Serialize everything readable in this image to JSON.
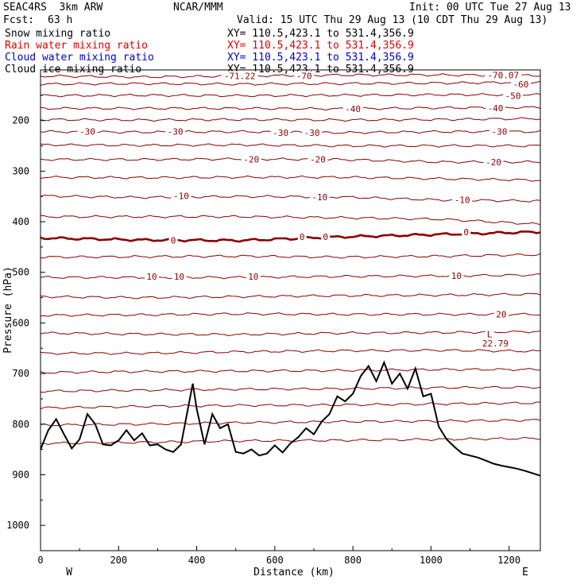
{
  "header": {
    "model": "SEAC4RS  3km ARW",
    "org": "NCAR/MMM",
    "init": "Init: 00 UTC Tue 27 Aug 13",
    "fcst_label": "Fcst:",
    "fcst_value": "63 h",
    "valid": "Valid: 15 UTC Thu 29 Aug 13 (10 CDT Thu 29 Aug 13)"
  },
  "fields": [
    {
      "name": "Snow mixing ratio",
      "xy": "XY= 110.5,423.1 to 531.4,356.9",
      "color": "#000000"
    },
    {
      "name": "Rain water mixing ratio",
      "xy": "XY= 110.5,423.1 to 531.4,356.9",
      "color": "#e00000"
    },
    {
      "name": "Cloud water mixing ratio",
      "xy": "XY= 110.5,423.1 to 531.4,356.9",
      "color": "#0000c8"
    },
    {
      "name": "Cloud ice mixing ratio",
      "xy": "XY= 110.5,423.1 to 531.4,356.9",
      "color": "#000000"
    }
  ],
  "colors": {
    "contour": "#8b0000",
    "terrain": "#000000",
    "frame": "#000000"
  },
  "chart_data": {
    "type": "line",
    "xlabel": "Distance (km)",
    "ylabel": "Pressure (hPa)",
    "xlim": [
      0,
      1280
    ],
    "ylim": [
      1050,
      100
    ],
    "x_ticks": [
      0,
      200,
      400,
      600,
      800,
      1000,
      1200
    ],
    "y_ticks": [
      200,
      300,
      400,
      500,
      600,
      700,
      800,
      900,
      1000
    ],
    "left_end": "W",
    "right_end": "E",
    "temperature_contours": [
      {
        "level": -70,
        "pressure": [
          112,
          114,
          112,
          110,
          110,
          111
        ]
      },
      {
        "level": -60,
        "pressure": [
          128,
          127,
          128,
          127,
          126,
          124
        ]
      },
      {
        "level": -50,
        "pressure": [
          151,
          150,
          151,
          150,
          149,
          149
        ]
      },
      {
        "level": -40,
        "pressure": [
          176,
          176,
          176,
          177,
          175,
          174
        ]
      },
      {
        "level": -35,
        "pressure": [
          198,
          199,
          198,
          199,
          198,
          196
        ]
      },
      {
        "level": -30,
        "pressure": [
          222,
          223,
          222,
          224,
          222,
          222
        ]
      },
      {
        "level": -25,
        "pressure": [
          248,
          249,
          248,
          250,
          250,
          250
        ]
      },
      {
        "level": -20,
        "pressure": [
          277,
          277,
          276,
          277,
          282,
          282
        ]
      },
      {
        "level": -15,
        "pressure": [
          312,
          313,
          312,
          312,
          315,
          318
        ]
      },
      {
        "level": -10,
        "pressure": [
          349,
          352,
          350,
          351,
          357,
          359
        ]
      },
      {
        "level": -5,
        "pressure": [
          390,
          390,
          390,
          392,
          395,
          405
        ]
      },
      {
        "level": 0,
        "pressure": [
          432,
          436,
          437,
          430,
          425,
          420
        ]
      },
      {
        "level": 5,
        "pressure": [
          470,
          469,
          468,
          470,
          468,
          465
        ]
      },
      {
        "level": 10,
        "pressure": [
          510,
          510,
          510,
          508,
          507,
          505
        ]
      },
      {
        "level": 15,
        "pressure": [
          548,
          550,
          548,
          546,
          545,
          543
        ]
      },
      {
        "level": 20,
        "pressure": [
          585,
          584,
          582,
          583,
          583,
          583
        ]
      },
      {
        "level": 25,
        "pressure": [
          620,
          622,
          623,
          620,
          619,
          617
        ]
      },
      {
        "level": 30,
        "pressure": [
          660,
          660,
          657,
          655,
          654,
          656
        ]
      },
      {
        "level": 35,
        "pressure": [
          698,
          696,
          695,
          694,
          692,
          692
        ]
      },
      {
        "level": 40,
        "pressure": [
          735,
          733,
          731,
          730,
          728,
          727
        ]
      },
      {
        "level": 45,
        "pressure": [
          768,
          765,
          763,
          762,
          760,
          758
        ]
      },
      {
        "level": 50,
        "pressure": [
          802,
          800,
          797,
          795,
          794,
          792
        ]
      },
      {
        "level": 55,
        "pressure": [
          838,
          836,
          833,
          832,
          830,
          828
        ]
      }
    ],
    "contour_labels": [
      {
        "text": "-71.22",
        "x": 510,
        "p": 112
      },
      {
        "text": "-70",
        "x": 675,
        "p": 112
      },
      {
        "text": "-70.07",
        "x": 1185,
        "p": 110
      },
      {
        "text": "-60",
        "x": 1230,
        "p": 128
      },
      {
        "text": "-50",
        "x": 1210,
        "p": 151
      },
      {
        "text": "-40",
        "x": 800,
        "p": 177
      },
      {
        "text": "-40",
        "x": 1165,
        "p": 175
      },
      {
        "text": "-30",
        "x": 120,
        "p": 222
      },
      {
        "text": "-30",
        "x": 345,
        "p": 222
      },
      {
        "text": "-30",
        "x": 615,
        "p": 224
      },
      {
        "text": "-30",
        "x": 695,
        "p": 224
      },
      {
        "text": "-30",
        "x": 1175,
        "p": 222
      },
      {
        "text": "-20",
        "x": 540,
        "p": 277
      },
      {
        "text": "-20",
        "x": 710,
        "p": 277
      },
      {
        "text": "-20",
        "x": 1160,
        "p": 282
      },
      {
        "text": "-10",
        "x": 360,
        "p": 349
      },
      {
        "text": "-10",
        "x": 715,
        "p": 351
      },
      {
        "text": "-10",
        "x": 1080,
        "p": 357
      },
      {
        "text": "0",
        "x": 340,
        "p": 437
      },
      {
        "text": "0",
        "x": 670,
        "p": 430
      },
      {
        "text": "0",
        "x": 730,
        "p": 430
      },
      {
        "text": "0",
        "x": 1090,
        "p": 420
      },
      {
        "text": "10",
        "x": 285,
        "p": 508
      },
      {
        "text": "10",
        "x": 355,
        "p": 508
      },
      {
        "text": "10",
        "x": 545,
        "p": 508
      },
      {
        "text": "10",
        "x": 1065,
        "p": 507
      },
      {
        "text": "20",
        "x": 1180,
        "p": 583
      },
      {
        "text": "L",
        "x": 1150,
        "p": 622
      },
      {
        "text": "22.79",
        "x": 1165,
        "p": 640
      }
    ],
    "terrain": {
      "name": "Terrain",
      "x": [
        0,
        20,
        40,
        60,
        80,
        100,
        120,
        140,
        160,
        180,
        200,
        220,
        240,
        260,
        280,
        300,
        320,
        340,
        360,
        380,
        390,
        400,
        420,
        440,
        460,
        480,
        500,
        520,
        540,
        560,
        580,
        600,
        620,
        640,
        660,
        680,
        700,
        720,
        740,
        760,
        780,
        800,
        820,
        840,
        860,
        880,
        900,
        920,
        940,
        960,
        980,
        1000,
        1020,
        1040,
        1060,
        1080,
        1100,
        1120,
        1140,
        1160,
        1180,
        1200,
        1220,
        1240,
        1260,
        1280
      ],
      "p": [
        850,
        812,
        790,
        820,
        848,
        830,
        780,
        800,
        840,
        842,
        832,
        812,
        832,
        818,
        842,
        840,
        850,
        855,
        840,
        760,
        720,
        770,
        840,
        780,
        808,
        800,
        855,
        858,
        850,
        862,
        858,
        842,
        856,
        838,
        826,
        808,
        820,
        795,
        780,
        745,
        755,
        740,
        705,
        685,
        715,
        678,
        720,
        700,
        730,
        690,
        745,
        740,
        805,
        830,
        845,
        858,
        862,
        866,
        872,
        878,
        882,
        885,
        888,
        892,
        897,
        902
      ]
    }
  }
}
